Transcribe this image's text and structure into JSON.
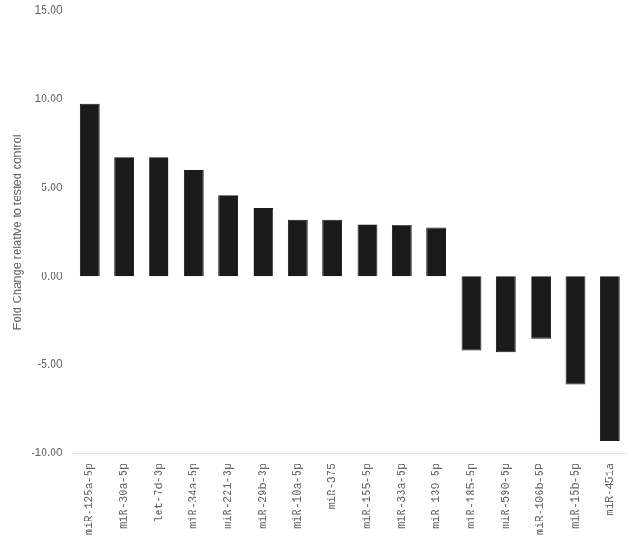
{
  "chart_data": {
    "type": "bar",
    "categories": [
      "miR-125a-5p",
      "miR-30a-5p",
      "let-7d-3p",
      "miR-34a-5p",
      "miR-221-3p",
      "miR-29b-3p",
      "miR-10a-5p",
      "miR-375",
      "miR-155-5p",
      "miR-33a-5p",
      "miR-139-5p",
      "miR-185-5p",
      "miR-590-5p",
      "miR-106b-5P",
      "miR-15b-5p",
      "miR-451a"
    ],
    "values": [
      9.75,
      6.75,
      6.75,
      6.0,
      4.6,
      3.85,
      3.2,
      3.2,
      2.95,
      2.9,
      2.75,
      -4.2,
      -4.3,
      -3.5,
      -6.1,
      -9.3
    ],
    "color": "#1a1a1a",
    "ylabel": "Fold Change relative to tested control",
    "ylim": [
      -10.0,
      15.0
    ],
    "yticks": [
      {
        "value": -10.0,
        "label": "-10.00"
      },
      {
        "value": -5.0,
        "label": "-5.00"
      },
      {
        "value": 0.0,
        "label": "0.00"
      },
      {
        "value": 5.0,
        "label": "5.00"
      },
      {
        "value": 10.0,
        "label": "10.00"
      },
      {
        "value": 15.0,
        "label": "15.00"
      }
    ],
    "grid": false
  }
}
